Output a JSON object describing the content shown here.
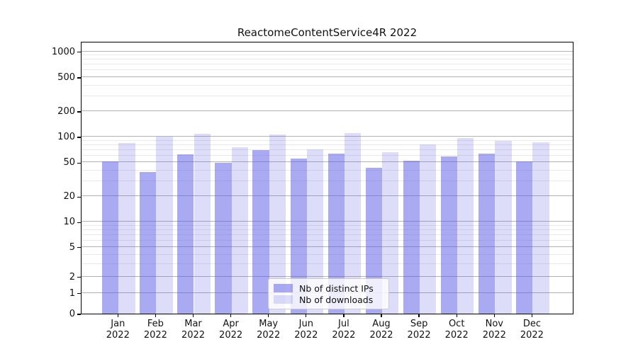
{
  "chart_data": {
    "type": "bar",
    "title": "ReactomeContentService4R 2022",
    "categories": [
      "Jan 2022",
      "Feb 2022",
      "Mar 2022",
      "Apr 2022",
      "May 2022",
      "Jun 2022",
      "Jul 2022",
      "Aug 2022",
      "Sep 2022",
      "Oct 2022",
      "Nov 2022",
      "Dec 2022"
    ],
    "series": [
      {
        "name": "Nb of distinct IPs",
        "color": "rgba(85,85,230,0.5)",
        "values": [
          51,
          39,
          62,
          50,
          70,
          56,
          64,
          43,
          52,
          59,
          64,
          51
        ]
      },
      {
        "name": "Nb of downloads",
        "color": "rgba(85,85,230,0.2)",
        "values": [
          84,
          100,
          108,
          75,
          107,
          71,
          111,
          66,
          81,
          97,
          90,
          87
        ]
      }
    ],
    "xlabel": "",
    "ylabel": "",
    "y_axis": {
      "scale": "asinh-log",
      "tick_values": [
        1000,
        500,
        200,
        100,
        50,
        20,
        10,
        5,
        2,
        1,
        0
      ],
      "range": [
        0,
        1300
      ]
    },
    "grid": {
      "visible": true,
      "major_color": "#b3b3b3",
      "minor_color": "#e9e9e9",
      "minor_multipliers": [
        3,
        4,
        6,
        7,
        8,
        9
      ],
      "minor_decades": [
        1,
        10,
        100
      ]
    },
    "legend": {
      "position": "lower center",
      "entries": [
        "Nb of distinct IPs",
        "Nb of downloads"
      ]
    },
    "colors": {
      "background": "#ffffff",
      "spine": "#000000",
      "text": "#111111",
      "ips_bar_blended": "#aaaaf2",
      "downloads_bar_blended": "#ddddfa"
    }
  }
}
